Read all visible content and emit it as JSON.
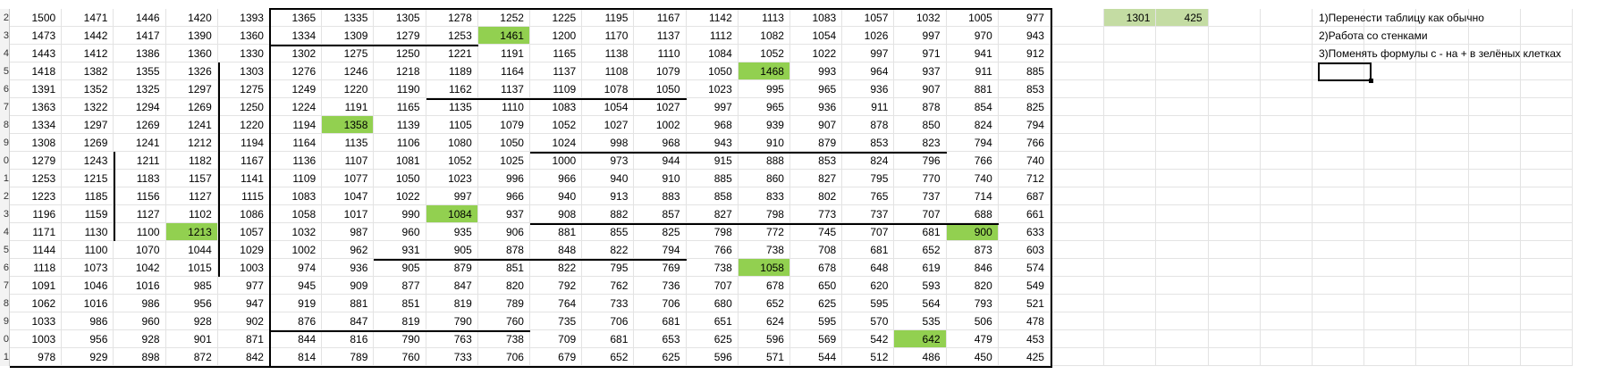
{
  "row_numbers": [
    "2",
    "3",
    "4",
    "5",
    "6",
    "7",
    "8",
    "9",
    "0",
    "1",
    "2",
    "3",
    "4",
    "5",
    "6",
    "7",
    "8",
    "9",
    "0",
    "1"
  ],
  "table": [
    [
      1500,
      1471,
      1446,
      1420,
      1393,
      1365,
      1335,
      1305,
      1278,
      1252,
      1225,
      1195,
      1167,
      1142,
      1113,
      1083,
      1057,
      1032,
      1005,
      977
    ],
    [
      1473,
      1442,
      1417,
      1390,
      1360,
      1334,
      1309,
      1279,
      1253,
      1461,
      1200,
      1170,
      1137,
      1112,
      1082,
      1054,
      1026,
      997,
      970,
      943
    ],
    [
      1443,
      1412,
      1386,
      1360,
      1330,
      1302,
      1275,
      1250,
      1221,
      1191,
      1165,
      1138,
      1110,
      1084,
      1052,
      1022,
      997,
      971,
      941,
      912
    ],
    [
      1418,
      1382,
      1355,
      1326,
      1303,
      1276,
      1246,
      1218,
      1189,
      1164,
      1137,
      1108,
      1079,
      1050,
      1468,
      993,
      964,
      937,
      911,
      885
    ],
    [
      1391,
      1352,
      1325,
      1297,
      1275,
      1249,
      1220,
      1190,
      1162,
      1137,
      1109,
      1078,
      1050,
      1023,
      995,
      965,
      936,
      907,
      881,
      853
    ],
    [
      1363,
      1322,
      1294,
      1269,
      1250,
      1224,
      1191,
      1165,
      1135,
      1110,
      1083,
      1054,
      1027,
      997,
      965,
      936,
      911,
      878,
      854,
      825
    ],
    [
      1334,
      1297,
      1269,
      1241,
      1220,
      1194,
      1358,
      1139,
      1105,
      1079,
      1052,
      1027,
      1002,
      968,
      939,
      907,
      878,
      850,
      824,
      794
    ],
    [
      1308,
      1269,
      1241,
      1212,
      1194,
      1164,
      1135,
      1106,
      1080,
      1050,
      1024,
      998,
      968,
      943,
      910,
      879,
      853,
      823,
      794,
      766
    ],
    [
      1279,
      1243,
      1211,
      1182,
      1167,
      1136,
      1107,
      1081,
      1052,
      1025,
      1000,
      973,
      944,
      915,
      888,
      853,
      824,
      796,
      766,
      740
    ],
    [
      1253,
      1215,
      1183,
      1157,
      1141,
      1109,
      1077,
      1050,
      1023,
      996,
      966,
      940,
      910,
      885,
      860,
      827,
      795,
      770,
      740,
      712
    ],
    [
      1223,
      1185,
      1156,
      1127,
      1115,
      1083,
      1047,
      1022,
      997,
      966,
      940,
      913,
      883,
      858,
      833,
      802,
      765,
      737,
      714,
      687
    ],
    [
      1196,
      1159,
      1127,
      1102,
      1086,
      1058,
      1017,
      990,
      1084,
      937,
      908,
      882,
      857,
      827,
      798,
      773,
      737,
      707,
      688,
      661
    ],
    [
      1171,
      1130,
      1100,
      1213,
      1057,
      1032,
      987,
      960,
      935,
      906,
      881,
      855,
      825,
      798,
      772,
      745,
      707,
      681,
      900,
      633
    ],
    [
      1144,
      1100,
      1070,
      1044,
      1029,
      1002,
      962,
      931,
      905,
      878,
      848,
      822,
      794,
      766,
      738,
      708,
      681,
      652,
      873,
      603
    ],
    [
      1118,
      1073,
      1042,
      1015,
      1003,
      974,
      936,
      905,
      879,
      851,
      822,
      795,
      769,
      738,
      1058,
      678,
      648,
      619,
      846,
      574
    ],
    [
      1091,
      1046,
      1016,
      985,
      977,
      945,
      909,
      877,
      847,
      820,
      792,
      762,
      736,
      707,
      678,
      650,
      620,
      593,
      820,
      549
    ],
    [
      1062,
      1016,
      986,
      956,
      947,
      919,
      881,
      851,
      819,
      789,
      764,
      733,
      706,
      680,
      652,
      625,
      595,
      564,
      793,
      521
    ],
    [
      1033,
      986,
      960,
      928,
      902,
      876,
      847,
      819,
      790,
      760,
      735,
      706,
      681,
      651,
      624,
      595,
      570,
      535,
      506,
      478
    ],
    [
      1003,
      956,
      928,
      901,
      871,
      844,
      816,
      790,
      763,
      738,
      709,
      681,
      653,
      625,
      596,
      569,
      542,
      642,
      479,
      453
    ],
    [
      978,
      929,
      898,
      872,
      842,
      814,
      789,
      760,
      733,
      706,
      679,
      652,
      625,
      596,
      571,
      544,
      512,
      486,
      450,
      425
    ]
  ],
  "green_cells": [
    [
      1,
      9
    ],
    [
      3,
      14
    ],
    [
      6,
      6
    ],
    [
      11,
      8
    ],
    [
      12,
      3
    ],
    [
      12,
      18
    ],
    [
      14,
      14
    ],
    [
      18,
      17
    ]
  ],
  "side_values": [
    "1301",
    "425"
  ],
  "notes": [
    "1)Перенести таблицу как обычно",
    "2)Работа со стенками",
    "3)Поменять формулы с - на + в зелёных клетках"
  ],
  "colors": {
    "green": "#92d050",
    "pale_green": "#c4dca3",
    "marker": "#1e8a1e"
  }
}
